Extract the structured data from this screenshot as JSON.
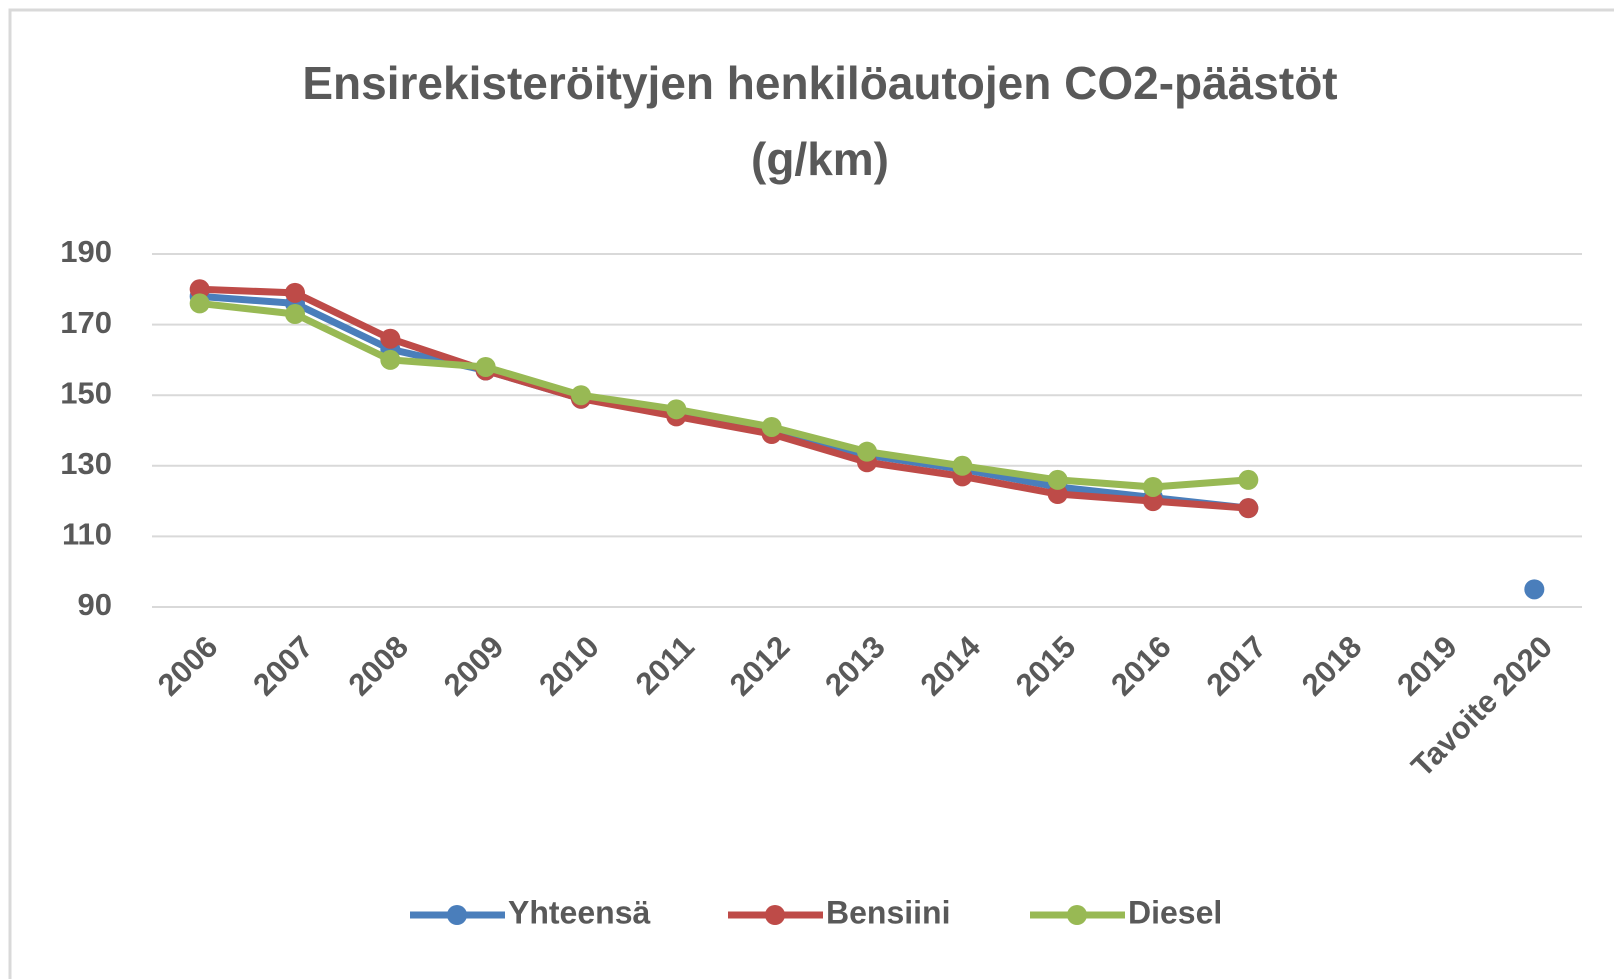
{
  "chart_data": {
    "type": "line",
    "title": [
      "Ensirekisteröityjen henkilöautojen CO2-päästöt",
      "(g/km)"
    ],
    "categories": [
      "2006",
      "2007",
      "2008",
      "2009",
      "2010",
      "2011",
      "2012",
      "2013",
      "2014",
      "2015",
      "2016",
      "2017",
      "2018",
      "2019",
      "Tavoite 2020"
    ],
    "series": [
      {
        "name": "Yhteensä",
        "color": "#4a7ebb",
        "values": [
          178,
          176,
          163,
          157,
          149,
          145,
          140,
          133,
          129,
          124,
          121,
          118,
          null,
          null,
          95
        ]
      },
      {
        "name": "Bensiini",
        "color": "#be4b48",
        "values": [
          180,
          179,
          166,
          157,
          149,
          144,
          139,
          131,
          127,
          122,
          120,
          118,
          null,
          null,
          null
        ]
      },
      {
        "name": "Diesel",
        "color": "#98b954",
        "values": [
          176,
          173,
          160,
          158,
          150,
          146,
          141,
          134,
          130,
          126,
          124,
          126,
          null,
          null,
          null
        ]
      }
    ],
    "ylim": [
      90,
      190
    ],
    "yticks": [
      90,
      110,
      130,
      150,
      170,
      190
    ],
    "grid": true,
    "legend": "bottom"
  }
}
